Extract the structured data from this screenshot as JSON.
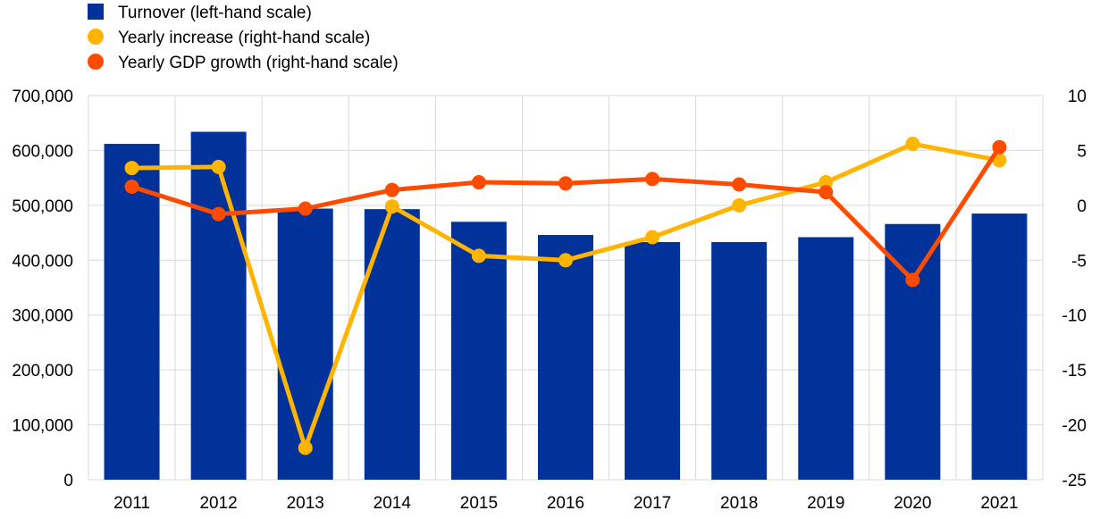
{
  "chart_data": {
    "type": "bar",
    "categories": [
      "2011",
      "2012",
      "2013",
      "2014",
      "2015",
      "2016",
      "2017",
      "2018",
      "2019",
      "2020",
      "2021"
    ],
    "series": [
      {
        "name": "Turnover (left-hand scale)",
        "type": "bar",
        "axis": "left",
        "color": "#003299",
        "values": [
          612000,
          634000,
          494000,
          493000,
          470000,
          446000,
          433000,
          433000,
          442000,
          466000,
          485000
        ]
      },
      {
        "name": "Yearly increase (right-hand scale)",
        "type": "line",
        "axis": "right",
        "color": "#FFB400",
        "values": [
          3.4,
          3.5,
          -22.1,
          -0.1,
          -4.6,
          -5.0,
          -2.9,
          0.0,
          2.1,
          5.6,
          4.1
        ]
      },
      {
        "name": "Yearly GDP growth (right-hand scale)",
        "type": "line",
        "axis": "right",
        "color": "#FF4B00",
        "values": [
          1.7,
          -0.8,
          -0.3,
          1.4,
          2.1,
          2.0,
          2.4,
          1.9,
          1.2,
          -6.8,
          5.3
        ]
      }
    ],
    "y_left": {
      "range": [
        0,
        700000
      ],
      "ticks": [
        0,
        100000,
        200000,
        300000,
        400000,
        500000,
        600000,
        700000
      ],
      "tick_labels": [
        "0",
        "100,000",
        "200,000",
        "300,000",
        "400,000",
        "500,000",
        "600,000",
        "700,000"
      ]
    },
    "y_right": {
      "range": [
        -25,
        10
      ],
      "ticks": [
        -25,
        -20,
        -15,
        -10,
        -5,
        0,
        5,
        10
      ],
      "tick_labels": [
        "-25",
        "-20",
        "-15",
        "-10",
        "-5",
        "0",
        "5",
        "10"
      ]
    },
    "grid": true,
    "legend_position": "top-left"
  }
}
